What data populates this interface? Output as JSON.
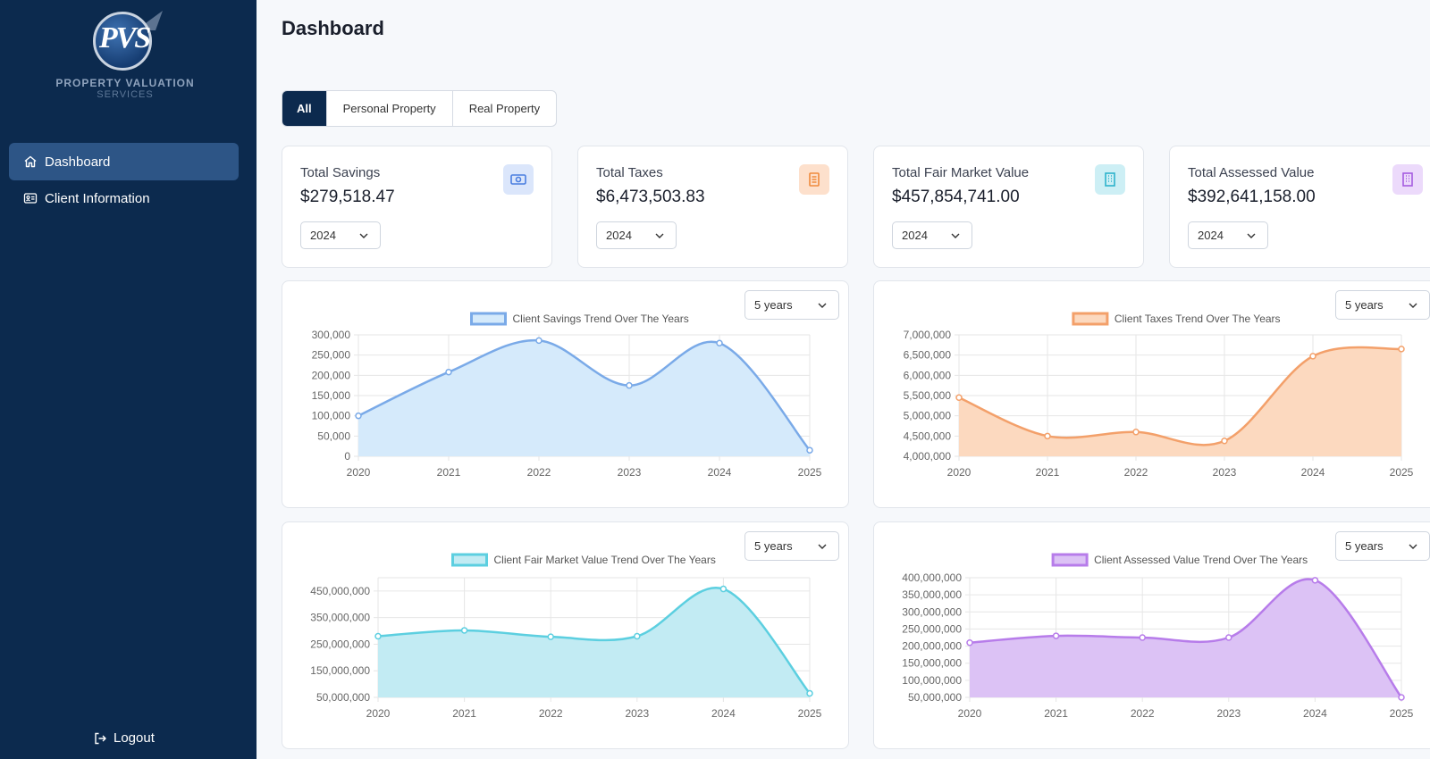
{
  "brand": {
    "monogram": "PVS",
    "line1": "PROPERTY VALUATION",
    "line2": "SERVICES"
  },
  "sidebar": {
    "items": [
      {
        "label": "Dashboard",
        "icon": "home-icon",
        "active": true
      },
      {
        "label": "Client Information",
        "icon": "id-card-icon",
        "active": false
      }
    ],
    "logout_label": "Logout"
  },
  "main": {
    "title": "Dashboard",
    "tabs": [
      {
        "label": "All",
        "active": true
      },
      {
        "label": "Personal Property",
        "active": false
      },
      {
        "label": "Real Property",
        "active": false
      }
    ]
  },
  "stats": [
    {
      "label": "Total Savings",
      "value": "$279,518.47",
      "year": "2024",
      "icon": "money-icon",
      "icon_bg": "#dbe6fb",
      "icon_color": "#4a7ee0"
    },
    {
      "label": "Total Taxes",
      "value": "$6,473,503.83",
      "year": "2024",
      "icon": "receipt-icon",
      "icon_bg": "#fde0cc",
      "icon_color": "#f08a3c"
    },
    {
      "label": "Total Fair Market Value",
      "value": "$457,854,741.00",
      "year": "2024",
      "icon": "building-icon",
      "icon_bg": "#cdeff5",
      "icon_color": "#2eb3cc"
    },
    {
      "label": "Total Assessed Value",
      "value": "$392,641,158.00",
      "year": "2024",
      "icon": "building-icon",
      "icon_bg": "#ecdafb",
      "icon_color": "#a55ce0"
    }
  ],
  "chart_data": [
    {
      "type": "area",
      "title": "Client Savings Trend Over The Years",
      "range_label": "5 years",
      "x": [
        "2020",
        "2021",
        "2022",
        "2023",
        "2024",
        "2025"
      ],
      "series": [
        {
          "name": "Client Savings Trend Over The Years",
          "values": [
            100000,
            208000,
            286000,
            175000,
            279518,
            15000
          ]
        }
      ],
      "yticks": [
        0,
        50000,
        100000,
        150000,
        200000,
        250000,
        300000
      ],
      "ytick_labels": [
        "0",
        "50,000",
        "100,000",
        "150,000",
        "200,000",
        "250,000",
        "300,000"
      ],
      "ylim": [
        0,
        300000
      ],
      "grid": true,
      "legend": "top-center",
      "line_color": "#7aaae8",
      "fill_color": "#d5eafb"
    },
    {
      "type": "area",
      "title": "Client Taxes Trend Over The Years",
      "range_label": "5 years",
      "x": [
        "2020",
        "2021",
        "2022",
        "2023",
        "2024",
        "2025"
      ],
      "series": [
        {
          "name": "Client Taxes Trend Over The Years",
          "values": [
            5450000,
            4500000,
            4600000,
            4380000,
            6473504,
            6650000
          ]
        }
      ],
      "yticks": [
        4000000,
        4500000,
        5000000,
        5500000,
        6000000,
        6500000,
        7000000
      ],
      "ytick_labels": [
        "4,000,000",
        "4,500,000",
        "5,000,000",
        "5,500,000",
        "6,000,000",
        "6,500,000",
        "7,000,000"
      ],
      "ylim": [
        4000000,
        7000000
      ],
      "grid": true,
      "legend": "top-center",
      "line_color": "#f3a06a",
      "fill_color": "#fcd9bf"
    },
    {
      "type": "area",
      "title": "Client Fair Market Value Trend Over The Years",
      "range_label": "5 years",
      "x": [
        "2020",
        "2021",
        "2022",
        "2023",
        "2024",
        "2025"
      ],
      "series": [
        {
          "name": "Client Fair Market Value Trend Over The Years",
          "values": [
            280000000,
            302000000,
            278000000,
            280000000,
            457854741,
            65000000
          ]
        }
      ],
      "yticks": [
        50000000,
        150000000,
        250000000,
        350000000,
        450000000
      ],
      "ytick_labels": [
        "50,000,000",
        "150,000,000",
        "250,000,000",
        "350,000,000",
        "450,000,000"
      ],
      "ylim": [
        50000000,
        500000000
      ],
      "grid": true,
      "legend": "top-center",
      "line_color": "#5ccfe0",
      "fill_color": "#c2ebf3"
    },
    {
      "type": "area",
      "title": "Client Assessed Value Trend Over The Years",
      "range_label": "5 years",
      "x": [
        "2020",
        "2021",
        "2022",
        "2023",
        "2024",
        "2025"
      ],
      "series": [
        {
          "name": "Client Assessed Value Trend Over The Years",
          "values": [
            210000000,
            230000000,
            225000000,
            225000000,
            392641158,
            50000000
          ]
        }
      ],
      "yticks": [
        50000000,
        100000000,
        150000000,
        200000000,
        250000000,
        300000000,
        350000000,
        400000000
      ],
      "ytick_labels": [
        "50,000,000",
        "100,000,000",
        "150,000,000",
        "200,000,000",
        "250,000,000",
        "300,000,000",
        "350,000,000",
        "400,000,000"
      ],
      "ylim": [
        50000000,
        400000000
      ],
      "grid": true,
      "legend": "top-center",
      "line_color": "#b77cea",
      "fill_color": "#dcc2f5"
    }
  ]
}
